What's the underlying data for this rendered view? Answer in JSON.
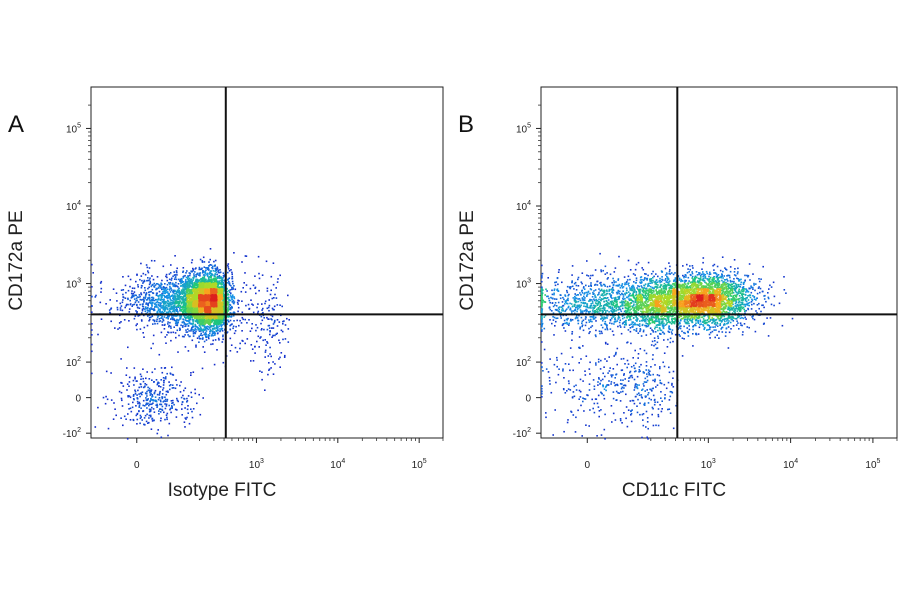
{
  "chart_data": [
    {
      "type": "scatter",
      "panel_label": "A",
      "xlabel": "Isotype FITC",
      "ylabel": "CD172a PE",
      "x_scale": "biexponential",
      "y_scale": "biexponential",
      "xlim": [
        -500,
        200000
      ],
      "ylim": [
        -300,
        250000
      ],
      "x_ticks": [
        {
          "value": 0,
          "base": "0",
          "exp": ""
        },
        {
          "value": 1000,
          "base": "10",
          "exp": "3"
        },
        {
          "value": 10000,
          "base": "10",
          "exp": "4"
        },
        {
          "value": 100000,
          "base": "10",
          "exp": "5"
        }
      ],
      "y_ticks": [
        {
          "value": -100,
          "base": "-10",
          "exp": "2"
        },
        {
          "value": 0,
          "base": "0",
          "exp": ""
        },
        {
          "value": 100,
          "base": "10",
          "exp": "2"
        },
        {
          "value": 1000,
          "base": "10",
          "exp": "3"
        },
        {
          "value": 10000,
          "base": "10",
          "exp": "4"
        },
        {
          "value": 100000,
          "base": "10",
          "exp": "5"
        }
      ],
      "gates": {
        "x": 420,
        "y": 400
      },
      "populations": [
        {
          "cx": 220,
          "cy": 600,
          "sx": 110,
          "sy_log": 0.18,
          "weight": 0.88
        },
        {
          "cx": 40,
          "cy": 0,
          "sx": 60,
          "sy": 40,
          "weight": 0.07
        },
        {
          "cx": 900,
          "cy": 350,
          "sx": 600,
          "sy_log": 0.35,
          "weight": 0.05
        }
      ]
    },
    {
      "type": "scatter",
      "panel_label": "B",
      "xlabel": "CD11c FITC",
      "ylabel": "CD172a PE",
      "x_scale": "biexponential",
      "y_scale": "biexponential",
      "xlim": [
        -500,
        200000
      ],
      "ylim": [
        -300,
        250000
      ],
      "x_ticks": [
        {
          "value": 0,
          "base": "0",
          "exp": ""
        },
        {
          "value": 1000,
          "base": "10",
          "exp": "3"
        },
        {
          "value": 10000,
          "base": "10",
          "exp": "4"
        },
        {
          "value": 100000,
          "base": "10",
          "exp": "5"
        }
      ],
      "y_ticks": [
        {
          "value": -100,
          "base": "-10",
          "exp": "2"
        },
        {
          "value": 0,
          "base": "0",
          "exp": ""
        },
        {
          "value": 100,
          "base": "10",
          "exp": "2"
        },
        {
          "value": 1000,
          "base": "10",
          "exp": "3"
        },
        {
          "value": 10000,
          "base": "10",
          "exp": "4"
        },
        {
          "value": 100000,
          "base": "10",
          "exp": "5"
        }
      ],
      "gates": {
        "x": 420,
        "y": 400
      },
      "populations": [
        {
          "cx": 850,
          "cy": 620,
          "sx_log": 0.3,
          "sy_log": 0.17,
          "weight": 0.55
        },
        {
          "cx": 120,
          "cy": 560,
          "sx": 140,
          "sy_log": 0.18,
          "weight": 0.37
        },
        {
          "cx": 100,
          "cy": 30,
          "sx": 120,
          "sy": 60,
          "weight": 0.08
        }
      ]
    }
  ]
}
